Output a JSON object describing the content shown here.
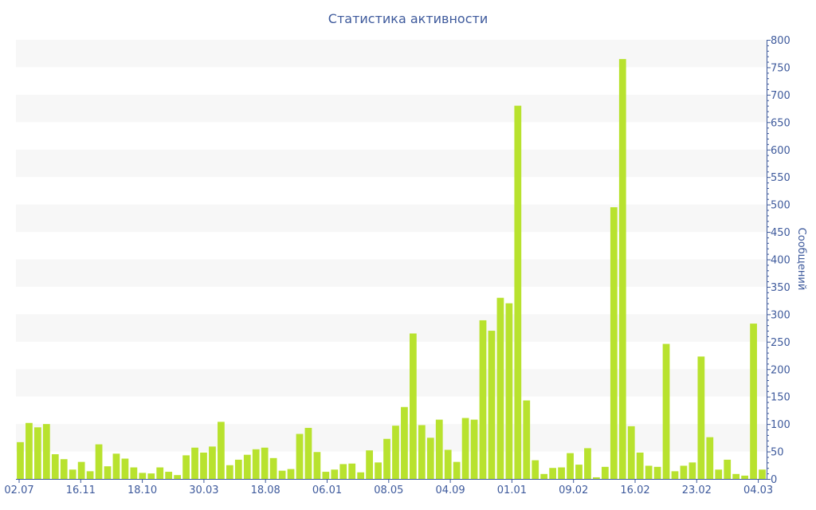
{
  "chart_data": {
    "type": "bar",
    "title": "Статистика активности",
    "ylabel": "Сообщений",
    "y_axis_side": "right",
    "ylim": [
      0,
      800
    ],
    "y_ticks": [
      0,
      50,
      100,
      150,
      200,
      250,
      300,
      350,
      400,
      450,
      500,
      550,
      600,
      650,
      700,
      750,
      800
    ],
    "x_tick_labels": [
      "02.07",
      "16.11",
      "18.10",
      "30.03",
      "18.08",
      "06.01",
      "08.05",
      "04.09",
      "01.01",
      "09.02",
      "16.02",
      "23.02",
      "04.03"
    ],
    "bar_color": "#b8e22e",
    "band_color": "#f7f7f7",
    "values": [
      67,
      102,
      94,
      100,
      45,
      36,
      17,
      31,
      14,
      63,
      23,
      46,
      37,
      21,
      11,
      10,
      21,
      13,
      7,
      43,
      57,
      48,
      59,
      104,
      25,
      35,
      44,
      54,
      57,
      38,
      15,
      18,
      82,
      93,
      49,
      13,
      17,
      27,
      28,
      12,
      52,
      30,
      73,
      97,
      131,
      265,
      98,
      75,
      108,
      53,
      31,
      111,
      108,
      289,
      270,
      330,
      320,
      680,
      143,
      34,
      9,
      20,
      21,
      47,
      26,
      56,
      3,
      22,
      495,
      765,
      96,
      48,
      24,
      22,
      246,
      14,
      24,
      30,
      223,
      76,
      17,
      35,
      9,
      6,
      283,
      17
    ]
  }
}
